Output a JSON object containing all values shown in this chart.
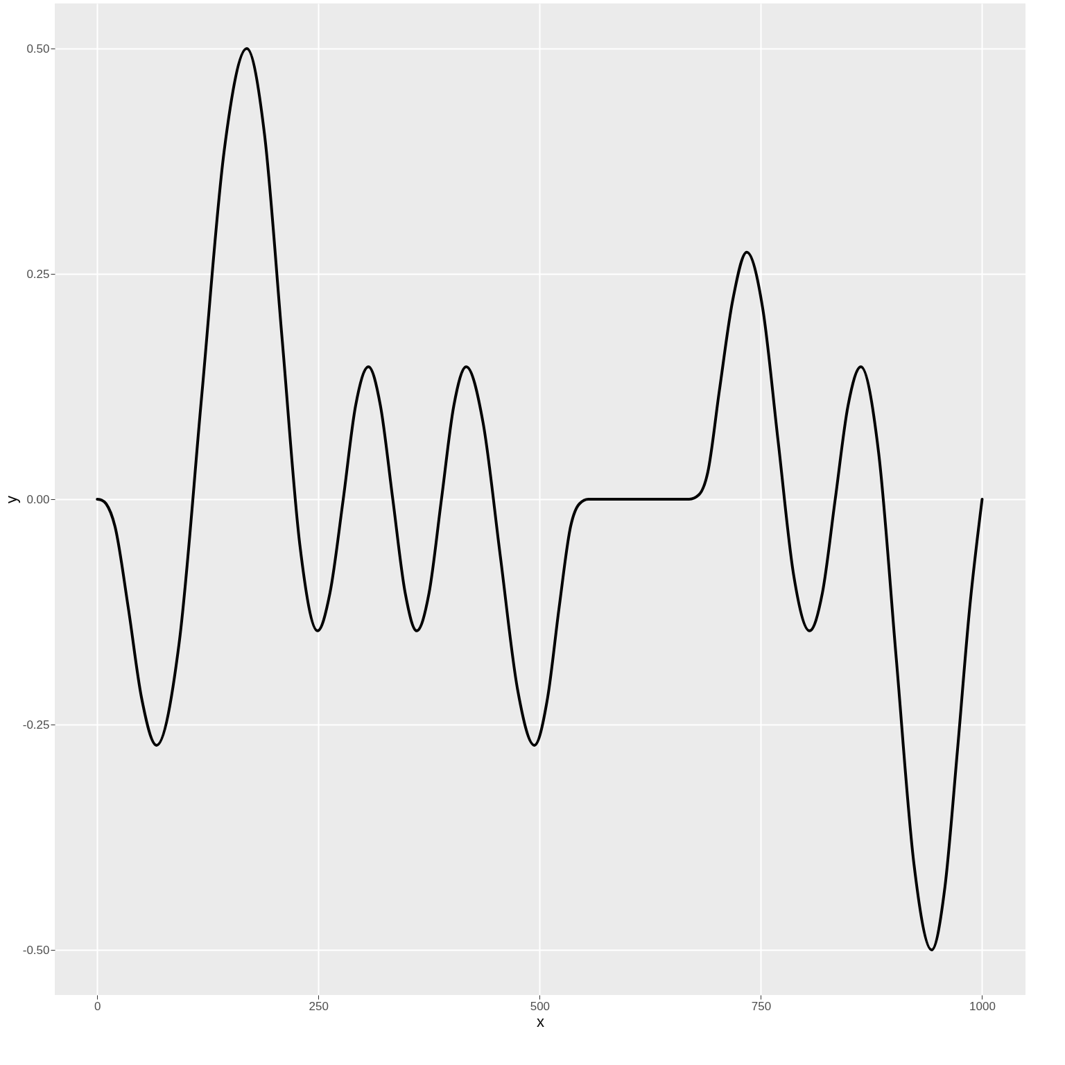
{
  "chart_data": {
    "type": "line",
    "xlabel": "x",
    "ylabel": "y",
    "x": [
      0,
      5,
      10,
      20,
      35,
      50,
      67,
      92.5,
      118,
      143.5,
      169,
      189,
      209,
      229,
      249,
      263,
      278,
      292,
      306.5,
      320,
      334,
      348,
      361,
      375,
      389,
      403,
      417,
      436,
      455.5,
      475,
      494,
      509,
      522,
      535,
      545,
      555,
      600,
      669,
      680,
      690,
      703,
      718,
      734,
      752,
      769.5,
      787,
      805,
      819.5,
      834,
      848.5,
      863,
      883,
      903,
      923,
      943,
      958,
      972,
      986,
      1000
    ],
    "series": [
      {
        "color": "#000000",
        "values": [
          0,
          -0.001,
          -0.005,
          -0.03,
          -0.12,
          -0.22,
          -0.273,
          -0.16,
          0.114,
          0.387,
          0.5,
          0.405,
          0.177,
          -0.051,
          -0.146,
          -0.104,
          0,
          0.104,
          0.147,
          0.104,
          0,
          -0.104,
          -0.146,
          -0.104,
          0,
          0.104,
          0.147,
          0.085,
          -0.063,
          -0.211,
          -0.273,
          -0.22,
          -0.12,
          -0.03,
          -0.005,
          0,
          0,
          0,
          0.005,
          0.03,
          0.12,
          0.22,
          0.274,
          0.212,
          0.064,
          -0.084,
          -0.146,
          -0.104,
          0,
          0.104,
          0.147,
          0.052,
          -0.177,
          -0.405,
          -0.5,
          -0.43,
          -0.28,
          -0.12,
          0
        ]
      }
    ],
    "xlim": [
      -48,
      1049
    ],
    "ylim": [
      -0.55,
      0.55
    ],
    "xticks": [
      0,
      250,
      500,
      750,
      1000
    ],
    "yticks": [
      {
        "value": -0.5,
        "label": "-0.50"
      },
      {
        "value": -0.25,
        "label": "-0.25"
      },
      {
        "value": 0,
        "label": "0.00"
      },
      {
        "value": 0.25,
        "label": "0.25"
      },
      {
        "value": 0.5,
        "label": "0.50"
      }
    ],
    "grid": true,
    "line_style": "solid",
    "marker": "none"
  }
}
